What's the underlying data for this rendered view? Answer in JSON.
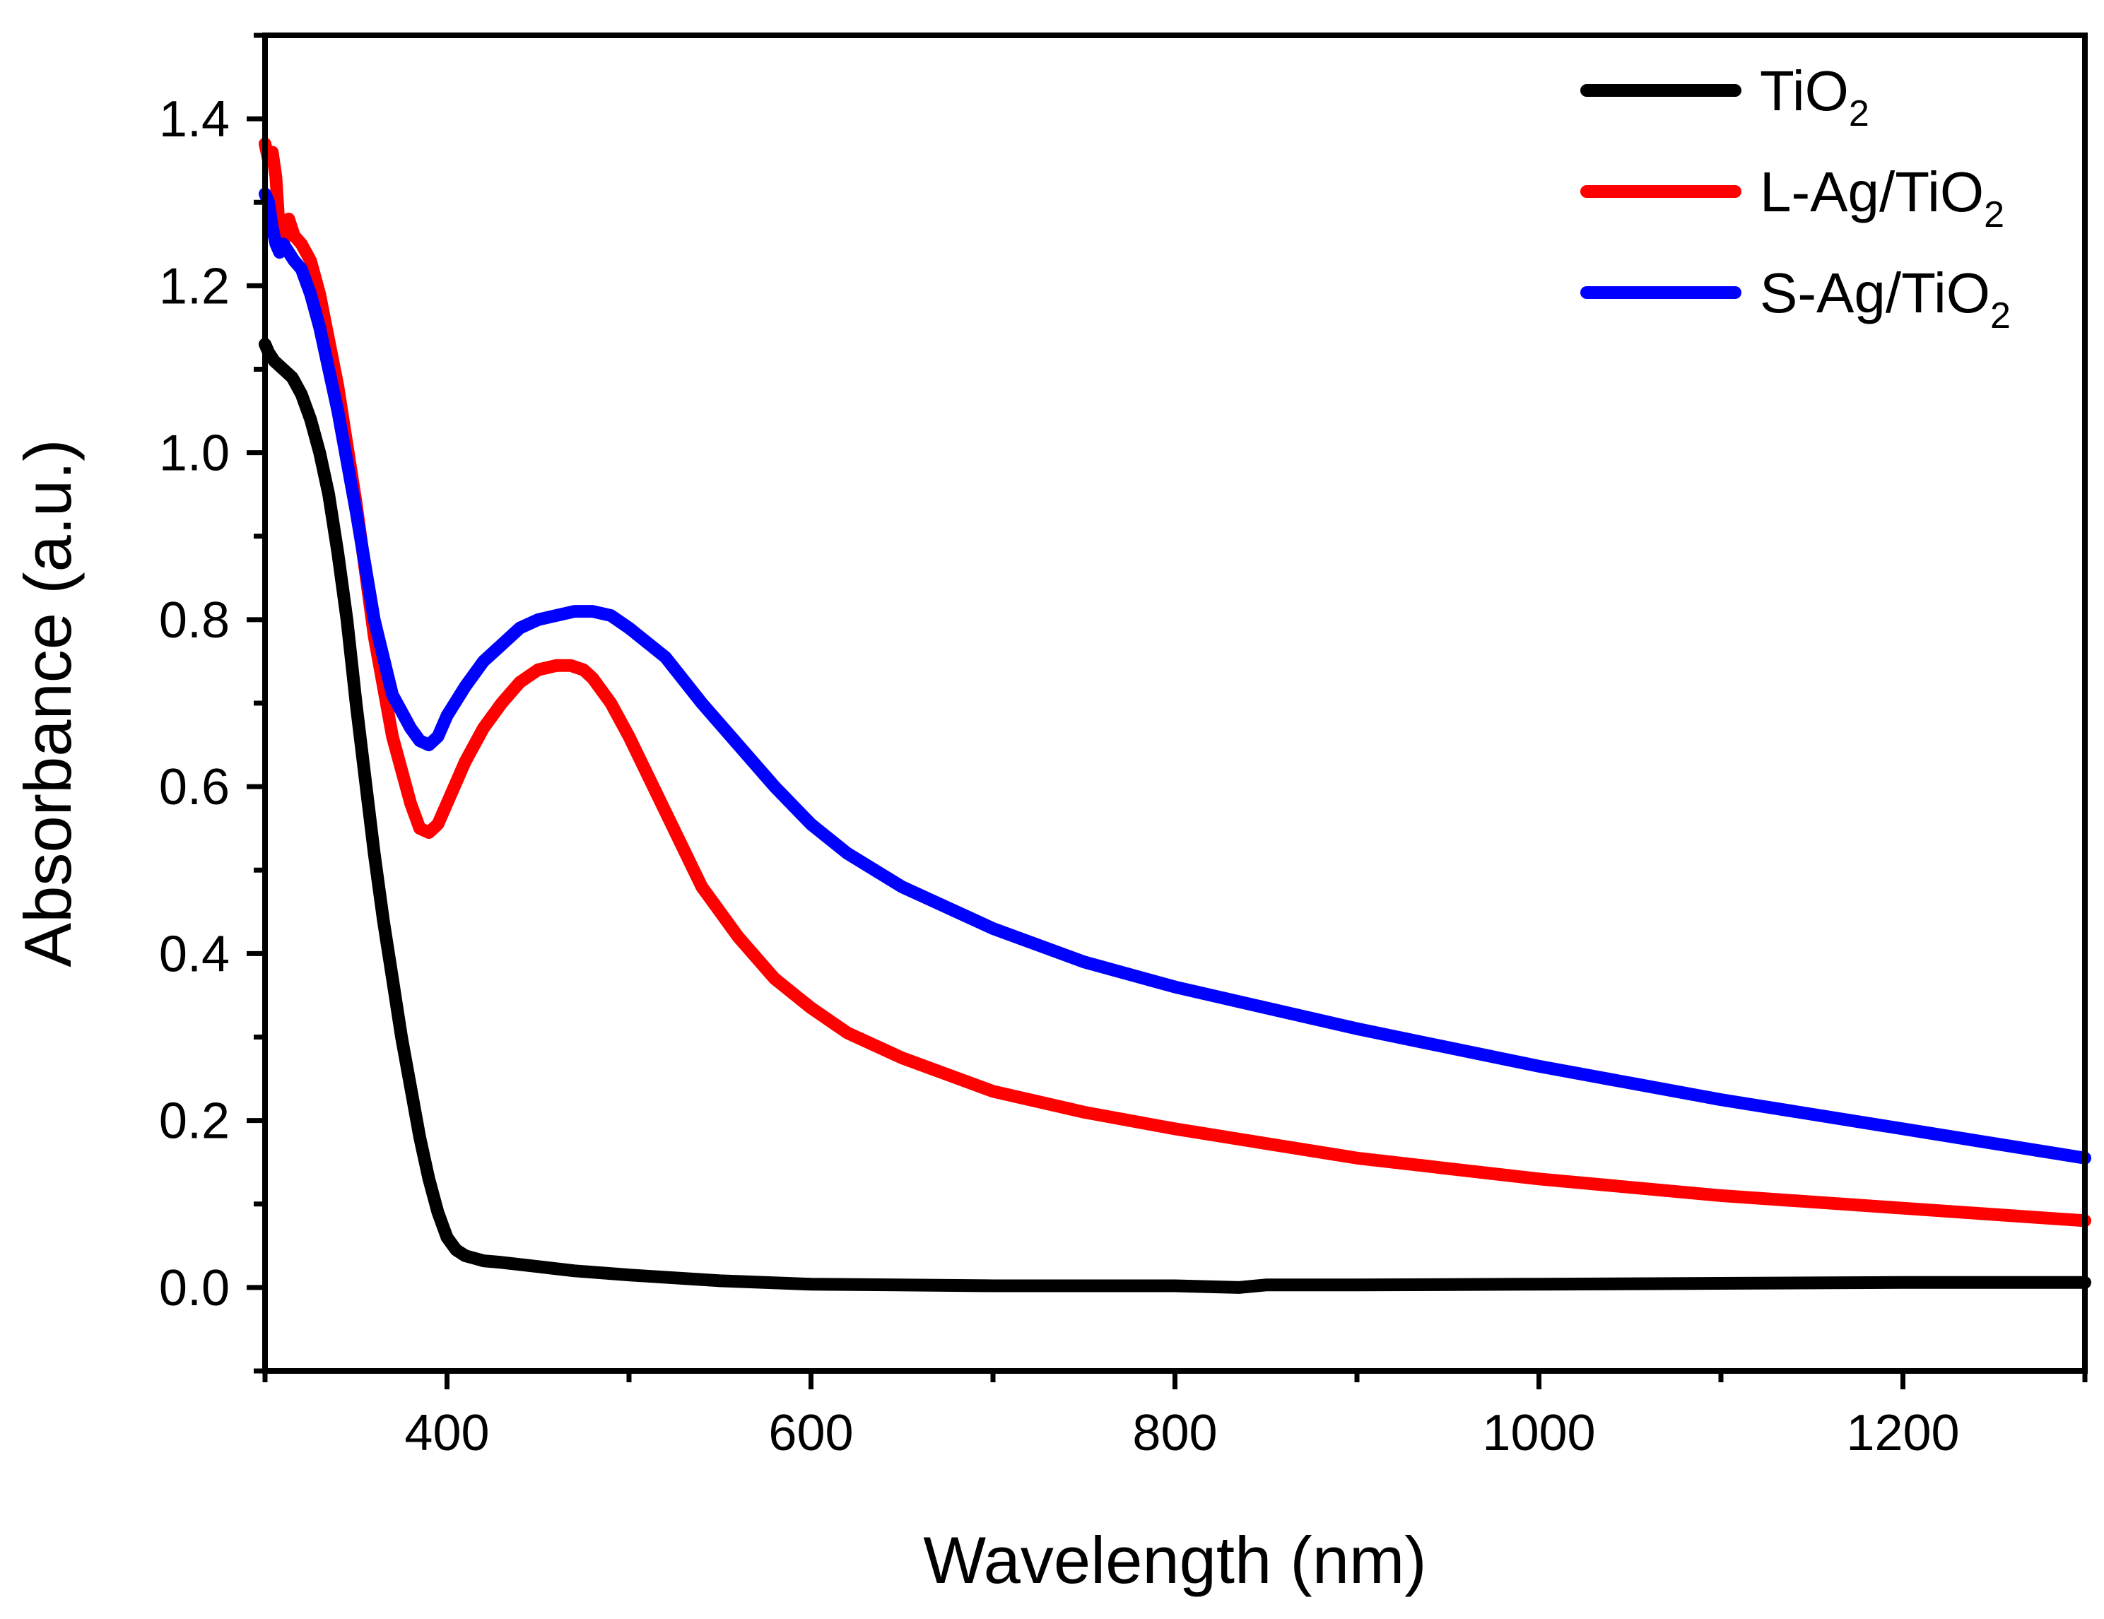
{
  "chart_data": {
    "type": "line",
    "title": "",
    "xlabel": "Wavelength (nm)",
    "ylabel": "Absorbance (a.u.)",
    "xlim": [
      300,
      1300
    ],
    "ylim": [
      -0.1,
      1.5
    ],
    "x_ticks": [
      "400",
      "600",
      "800",
      "1000",
      "1200"
    ],
    "y_ticks": [
      "0.0",
      "0.2",
      "0.4",
      "0.6",
      "0.8",
      "1.0",
      "1.2",
      "1.4"
    ],
    "legend_position": "top-right",
    "legend": [
      {
        "name": "TiO",
        "subscript": "2",
        "color": "#000000"
      },
      {
        "name": "L-Ag/TiO",
        "subscript": "2",
        "color": "#ff0000"
      },
      {
        "name": "S-Ag/TiO",
        "subscript": "2",
        "color": "#0000ff"
      }
    ],
    "series": [
      {
        "name": "TiO2",
        "color": "#000000",
        "x": [
          300,
          302,
          305,
          310,
          315,
          320,
          325,
          330,
          335,
          340,
          345,
          350,
          355,
          360,
          365,
          370,
          375,
          380,
          385,
          390,
          395,
          400,
          405,
          410,
          415,
          420,
          430,
          450,
          470,
          500,
          550,
          600,
          700,
          800,
          835,
          850,
          900,
          1000,
          1100,
          1200,
          1300
        ],
        "values": [
          1.13,
          1.12,
          1.11,
          1.1,
          1.09,
          1.07,
          1.04,
          1.0,
          0.95,
          0.88,
          0.8,
          0.7,
          0.61,
          0.52,
          0.44,
          0.37,
          0.3,
          0.24,
          0.18,
          0.13,
          0.09,
          0.06,
          0.045,
          0.038,
          0.035,
          0.032,
          0.03,
          0.025,
          0.02,
          0.015,
          0.008,
          0.004,
          0.002,
          0.002,
          0.0,
          0.003,
          0.003,
          0.004,
          0.005,
          0.006,
          0.006
        ]
      },
      {
        "name": "L-Ag/TiO2",
        "color": "#ff0000",
        "x": [
          300,
          302,
          304,
          306,
          308,
          310,
          313,
          316,
          320,
          325,
          330,
          340,
          350,
          360,
          370,
          380,
          385,
          390,
          395,
          400,
          410,
          420,
          430,
          440,
          450,
          460,
          468,
          475,
          480,
          490,
          500,
          520,
          540,
          560,
          580,
          600,
          620,
          650,
          700,
          750,
          800,
          900,
          1000,
          1100,
          1200,
          1300
        ],
        "values": [
          1.37,
          1.35,
          1.36,
          1.33,
          1.26,
          1.25,
          1.28,
          1.26,
          1.25,
          1.23,
          1.19,
          1.08,
          0.94,
          0.78,
          0.66,
          0.58,
          0.55,
          0.545,
          0.555,
          0.58,
          0.63,
          0.67,
          0.7,
          0.725,
          0.74,
          0.745,
          0.745,
          0.74,
          0.73,
          0.7,
          0.66,
          0.57,
          0.48,
          0.42,
          0.37,
          0.335,
          0.305,
          0.275,
          0.235,
          0.21,
          0.19,
          0.155,
          0.13,
          0.11,
          0.095,
          0.08
        ]
      },
      {
        "name": "S-Ag/TiO2",
        "color": "#0000ff",
        "x": [
          300,
          302,
          304,
          306,
          308,
          310,
          313,
          316,
          320,
          325,
          330,
          340,
          350,
          360,
          370,
          380,
          385,
          390,
          395,
          400,
          410,
          420,
          430,
          440,
          450,
          460,
          470,
          480,
          490,
          500,
          520,
          540,
          560,
          580,
          600,
          620,
          650,
          700,
          750,
          800,
          850,
          900,
          1000,
          1100,
          1200,
          1300
        ],
        "values": [
          1.31,
          1.3,
          1.27,
          1.25,
          1.24,
          1.25,
          1.24,
          1.23,
          1.22,
          1.19,
          1.15,
          1.05,
          0.93,
          0.8,
          0.71,
          0.67,
          0.655,
          0.65,
          0.66,
          0.685,
          0.72,
          0.75,
          0.77,
          0.79,
          0.8,
          0.805,
          0.81,
          0.81,
          0.805,
          0.79,
          0.755,
          0.7,
          0.65,
          0.6,
          0.555,
          0.52,
          0.48,
          0.43,
          0.39,
          0.36,
          0.335,
          0.31,
          0.265,
          0.225,
          0.19,
          0.155
        ]
      }
    ]
  }
}
